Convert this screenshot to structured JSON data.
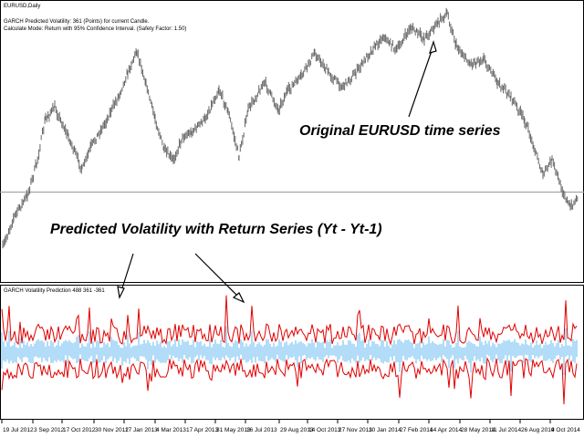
{
  "main_window": {
    "title": "EURUSD,Daily",
    "info_lines": [
      "GARCH Predicted Volatility: 361 (Points) for current Candle.",
      "Calculate Mode: Return with 95% Confidence Interval. (Safety Factor: 1.50)"
    ],
    "annotation_price": "Original EURUSD time series",
    "annotation_volatility": "Predicted Volatility with Return Series (Yt - Yt-1)"
  },
  "indicator_window": {
    "label": "GARCH Volatility Prediction 488 361 -361"
  },
  "time_axis": [
    "19 Jul 2012",
    "3 Sep 2012",
    "17 Oct 2012",
    "30 Nov 2012",
    "17 Jan 2013",
    "4 Mar 2013",
    "17 Apr 2013",
    "31 May 2013",
    "16 Jul 2013",
    "29 Aug 2013",
    "14 Oct 2013",
    "27 Nov 2013",
    "10 Jan 2014",
    "27 Feb 2014",
    "14 Apr 2014",
    "28 May 2014",
    "11 Jul 2014",
    "26 Aug 2014",
    "9 Oct 2014"
  ]
}
